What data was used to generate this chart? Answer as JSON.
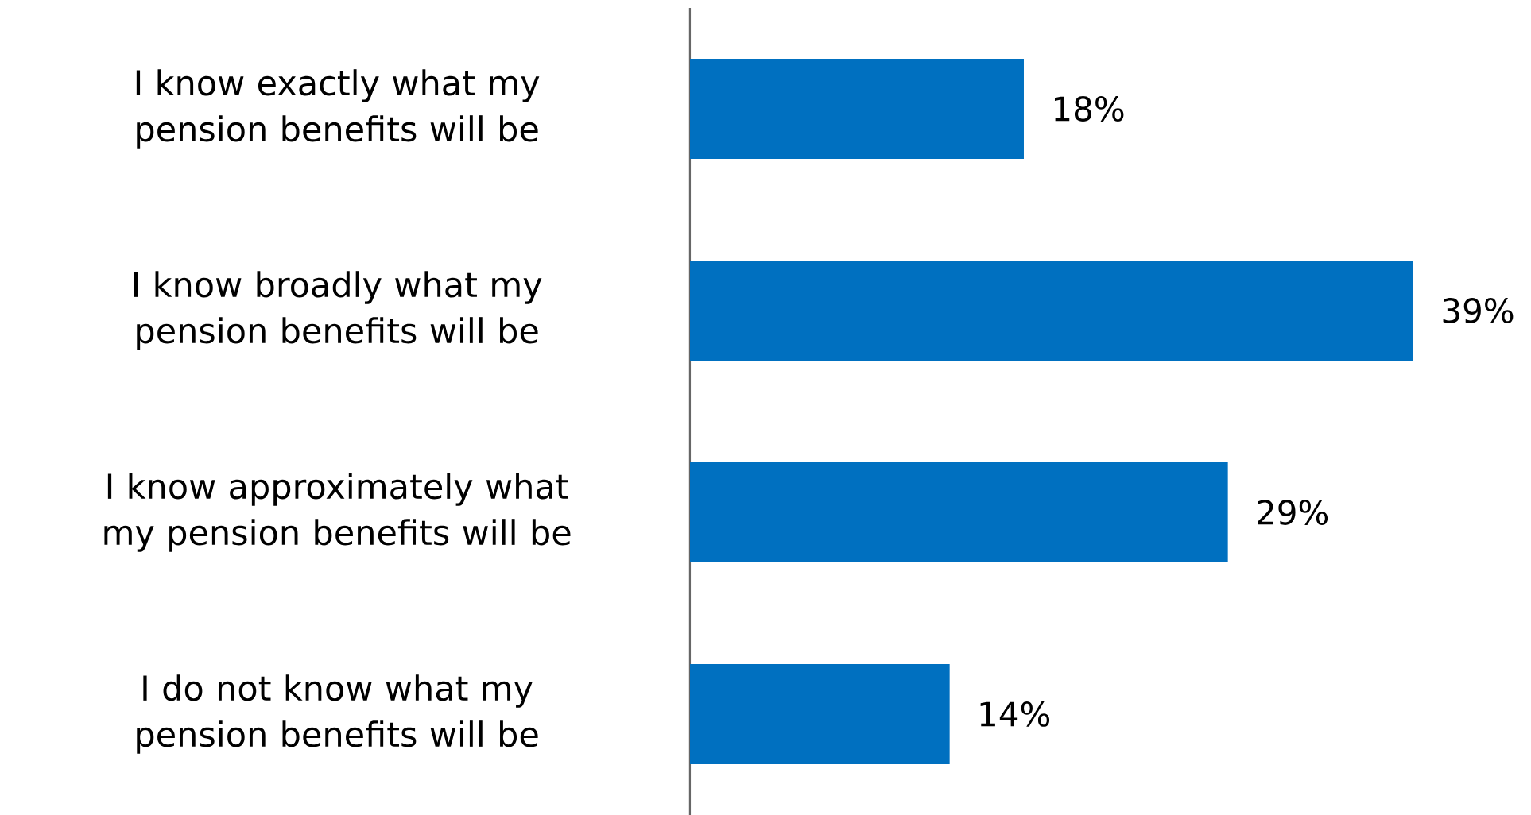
{
  "chart_data": {
    "type": "bar",
    "orientation": "horizontal",
    "categories": [
      "I know exactly what my pension benefits will be",
      "I know broadly what my pension benefits will be",
      "I know approximately what my pension benefits will be",
      "I do not know what my pension benefits will be"
    ],
    "values": [
      18,
      39,
      29,
      14
    ],
    "value_labels": [
      "18%",
      "39%",
      "29%",
      "14%"
    ],
    "color": "#0070c0"
  }
}
